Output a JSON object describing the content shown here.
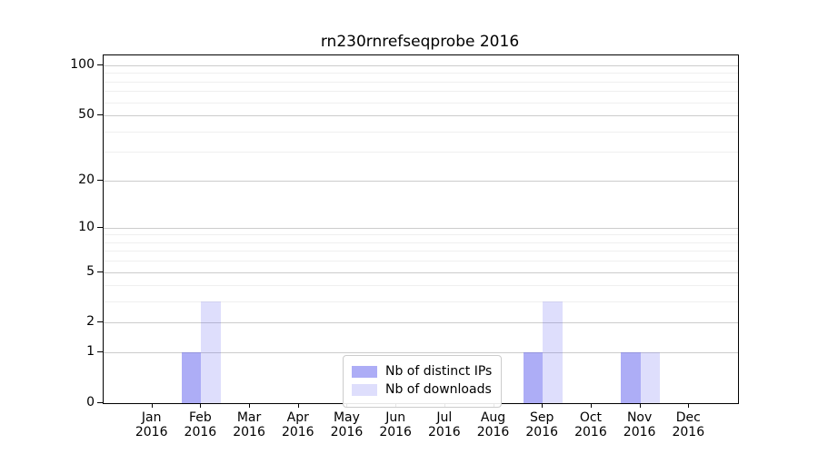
{
  "figure": {
    "background": "#ffffff",
    "spine_color": "#000000"
  },
  "chart_data": {
    "type": "bar",
    "title": "rn230rnrefseqprobe 2016",
    "categories": [
      {
        "month": "Jan",
        "year": "2016"
      },
      {
        "month": "Feb",
        "year": "2016"
      },
      {
        "month": "Mar",
        "year": "2016"
      },
      {
        "month": "Apr",
        "year": "2016"
      },
      {
        "month": "May",
        "year": "2016"
      },
      {
        "month": "Jun",
        "year": "2016"
      },
      {
        "month": "Jul",
        "year": "2016"
      },
      {
        "month": "Aug",
        "year": "2016"
      },
      {
        "month": "Sep",
        "year": "2016"
      },
      {
        "month": "Oct",
        "year": "2016"
      },
      {
        "month": "Nov",
        "year": "2016"
      },
      {
        "month": "Dec",
        "year": "2016"
      }
    ],
    "series": [
      {
        "name": "Nb of distinct IPs",
        "color": "rgba(92,92,238,0.5)",
        "values": [
          0,
          1,
          0,
          0,
          0,
          0,
          0,
          0,
          1,
          0,
          1,
          0
        ]
      },
      {
        "name": "Nb of downloads",
        "color": "rgba(92,92,238,0.2)",
        "values": [
          0,
          3,
          0,
          0,
          0,
          0,
          0,
          0,
          3,
          0,
          1,
          0
        ]
      }
    ],
    "y_axis": {
      "scale": "log10(1+x)",
      "major_ticks": [
        0,
        1,
        2,
        5,
        10,
        20,
        50,
        100
      ],
      "major_tick_labels": [
        "0",
        "1",
        "2",
        "5",
        "10",
        "20",
        "50",
        "100"
      ],
      "minor_ticks": [
        3,
        4,
        6,
        7,
        8,
        9,
        30,
        40,
        60,
        70,
        80,
        90
      ],
      "top_value": 115
    },
    "x_axis": {
      "tick_label_lines": 2
    },
    "grid": {
      "on": true,
      "major_color": "#cccccc",
      "minor_color": "#efefef"
    },
    "legend": {
      "position": "lower center"
    }
  }
}
